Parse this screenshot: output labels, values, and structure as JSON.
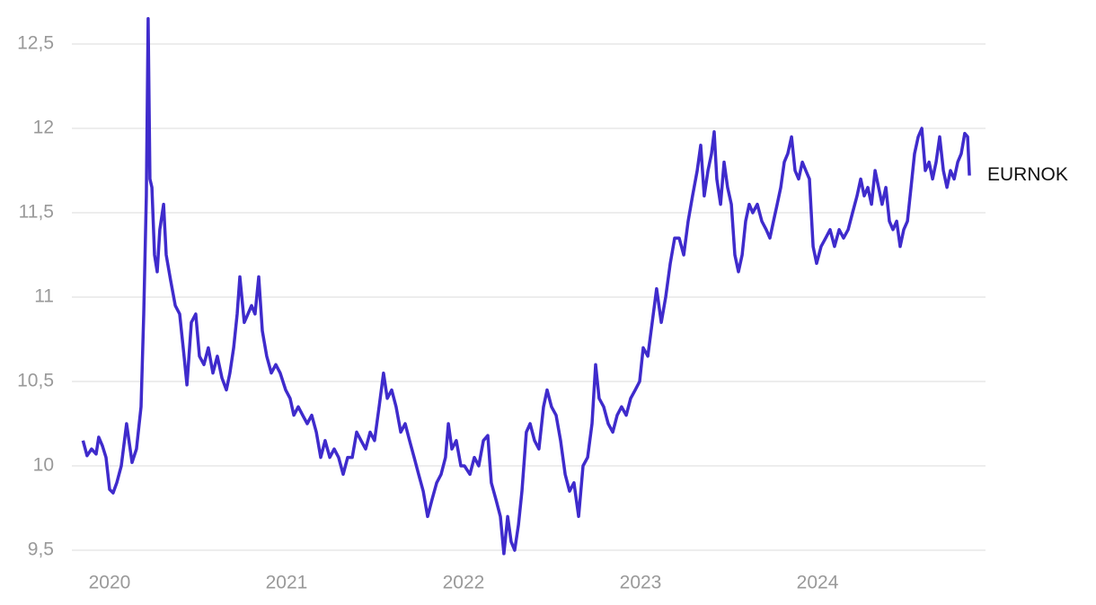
{
  "chart_data": {
    "type": "line",
    "x": [
      2019.85,
      2019.873,
      2019.898,
      2019.924,
      2019.939,
      2019.959,
      2019.98,
      2020.0,
      2020.02,
      2020.041,
      2020.066,
      2020.096,
      2020.127,
      2020.152,
      2020.178,
      2020.193,
      2020.208,
      2020.218,
      2020.228,
      2020.239,
      2020.254,
      2020.269,
      2020.284,
      2020.305,
      2020.32,
      2020.345,
      2020.371,
      2020.396,
      2020.421,
      2020.437,
      2020.462,
      2020.487,
      2020.508,
      2020.533,
      2020.558,
      2020.584,
      2020.609,
      2020.635,
      2020.66,
      2020.68,
      2020.701,
      2020.721,
      2020.736,
      2020.761,
      2020.782,
      2020.802,
      2020.822,
      2020.843,
      2020.863,
      2020.888,
      2020.914,
      2020.939,
      2020.964,
      2020.995,
      2021.02,
      2021.041,
      2021.066,
      2021.091,
      2021.117,
      2021.142,
      2021.168,
      2021.193,
      2021.218,
      2021.244,
      2021.269,
      2021.294,
      2021.32,
      2021.345,
      2021.371,
      2021.396,
      2021.421,
      2021.447,
      2021.472,
      2021.497,
      2021.523,
      2021.548,
      2021.569,
      2021.594,
      2021.619,
      2021.645,
      2021.67,
      2021.695,
      2021.721,
      2021.746,
      2021.772,
      2021.797,
      2021.822,
      2021.848,
      2021.873,
      2021.898,
      2021.914,
      2021.934,
      2021.959,
      2021.985,
      2022.005,
      2022.036,
      2022.061,
      2022.086,
      2022.112,
      2022.137,
      2022.157,
      2022.183,
      2022.208,
      2022.228,
      2022.249,
      2022.269,
      2022.289,
      2022.31,
      2022.33,
      2022.355,
      2022.376,
      2022.401,
      2022.426,
      2022.452,
      2022.472,
      2022.497,
      2022.523,
      2022.548,
      2022.574,
      2022.599,
      2022.624,
      2022.65,
      2022.675,
      2022.701,
      2022.726,
      2022.746,
      2022.766,
      2022.792,
      2022.817,
      2022.843,
      2022.868,
      2022.893,
      2022.919,
      2022.944,
      2022.97,
      2022.995,
      2023.015,
      2023.041,
      2023.066,
      2023.091,
      2023.117,
      2023.142,
      2023.168,
      2023.193,
      2023.218,
      2023.244,
      2023.269,
      2023.294,
      2023.32,
      2023.34,
      2023.36,
      2023.381,
      2023.401,
      2023.416,
      2023.431,
      2023.452,
      2023.472,
      2023.492,
      2023.513,
      2023.533,
      2023.553,
      2023.574,
      2023.594,
      2023.614,
      2023.634,
      2023.66,
      2023.685,
      2023.71,
      2023.731,
      2023.751,
      2023.772,
      2023.792,
      2023.812,
      2023.832,
      2023.853,
      2023.873,
      2023.893,
      2023.914,
      2023.934,
      2023.954,
      2023.975,
      2023.995,
      2024.02,
      2024.046,
      2024.071,
      2024.096,
      2024.122,
      2024.147,
      2024.173,
      2024.198,
      2024.223,
      2024.244,
      2024.264,
      2024.284,
      2024.305,
      2024.325,
      2024.345,
      2024.365,
      2024.386,
      2024.406,
      2024.426,
      2024.447,
      2024.467,
      2024.487,
      2024.508,
      2024.528,
      2024.548,
      2024.569,
      2024.589,
      2024.609,
      2024.63,
      2024.65,
      2024.67,
      2024.69,
      2024.711,
      2024.731,
      2024.751,
      2024.772,
      2024.792,
      2024.812,
      2024.832,
      2024.848,
      2024.858
    ],
    "series": [
      {
        "name": "EURNOK",
        "color": "#3f2bcc",
        "values": [
          10.15,
          10.06,
          10.1,
          10.07,
          10.17,
          10.12,
          10.05,
          9.86,
          9.84,
          9.9,
          10.0,
          10.25,
          10.02,
          10.1,
          10.35,
          10.9,
          11.6,
          12.65,
          11.7,
          11.65,
          11.25,
          11.15,
          11.4,
          11.55,
          11.25,
          11.1,
          10.95,
          10.9,
          10.65,
          10.48,
          10.85,
          10.9,
          10.65,
          10.6,
          10.7,
          10.55,
          10.65,
          10.52,
          10.45,
          10.55,
          10.7,
          10.9,
          11.12,
          10.85,
          10.9,
          10.95,
          10.9,
          11.12,
          10.8,
          10.65,
          10.55,
          10.6,
          10.55,
          10.45,
          10.4,
          10.3,
          10.35,
          10.3,
          10.25,
          10.3,
          10.2,
          10.05,
          10.15,
          10.05,
          10.1,
          10.05,
          9.95,
          10.05,
          10.05,
          10.2,
          10.15,
          10.1,
          10.2,
          10.15,
          10.35,
          10.55,
          10.4,
          10.45,
          10.35,
          10.2,
          10.25,
          10.15,
          10.05,
          9.95,
          9.85,
          9.7,
          9.8,
          9.9,
          9.95,
          10.05,
          10.25,
          10.1,
          10.15,
          10.0,
          10.0,
          9.95,
          10.05,
          10.0,
          10.15,
          10.18,
          9.9,
          9.8,
          9.7,
          9.48,
          9.7,
          9.55,
          9.5,
          9.65,
          9.85,
          10.2,
          10.25,
          10.15,
          10.1,
          10.35,
          10.45,
          10.35,
          10.3,
          10.15,
          9.95,
          9.85,
          9.9,
          9.7,
          10.0,
          10.05,
          10.25,
          10.6,
          10.4,
          10.35,
          10.25,
          10.2,
          10.3,
          10.35,
          10.3,
          10.4,
          10.45,
          10.5,
          10.7,
          10.65,
          10.85,
          11.05,
          10.85,
          11.0,
          11.2,
          11.35,
          11.35,
          11.25,
          11.45,
          11.6,
          11.75,
          11.9,
          11.6,
          11.75,
          11.85,
          11.98,
          11.7,
          11.55,
          11.8,
          11.65,
          11.55,
          11.25,
          11.15,
          11.25,
          11.45,
          11.55,
          11.5,
          11.55,
          11.45,
          11.4,
          11.35,
          11.45,
          11.55,
          11.65,
          11.8,
          11.85,
          11.95,
          11.75,
          11.7,
          11.8,
          11.75,
          11.7,
          11.3,
          11.2,
          11.3,
          11.35,
          11.4,
          11.3,
          11.4,
          11.35,
          11.4,
          11.5,
          11.6,
          11.7,
          11.6,
          11.65,
          11.55,
          11.75,
          11.65,
          11.55,
          11.65,
          11.45,
          11.4,
          11.45,
          11.3,
          11.4,
          11.45,
          11.65,
          11.85,
          11.95,
          12.0,
          11.75,
          11.8,
          11.7,
          11.8,
          11.95,
          11.75,
          11.65,
          11.75,
          11.7,
          11.8,
          11.85,
          11.97,
          11.95,
          11.72
        ]
      }
    ],
    "xlim": [
      2019.787,
      2024.949
    ],
    "xticks": [
      2020,
      2021,
      2022,
      2023,
      2024
    ],
    "ylim": [
      9.5,
      12.5
    ],
    "yticks": [
      {
        "value": 9.5,
        "label": "9,5"
      },
      10,
      {
        "value": 10.5,
        "label": "10,5"
      },
      11,
      {
        "value": 11.5,
        "label": "11,5"
      },
      12,
      {
        "value": 12.5,
        "label": "12,5"
      }
    ],
    "grid": true
  }
}
